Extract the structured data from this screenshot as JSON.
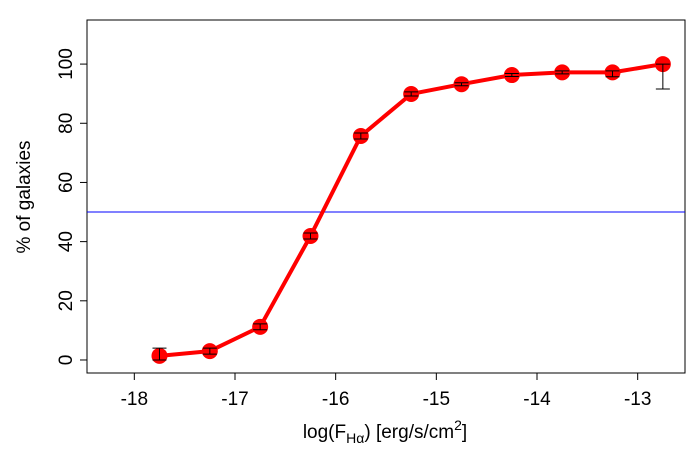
{
  "chart_data": {
    "type": "line",
    "xlabel": [
      "log(F",
      "Hα",
      ") [erg/s/cm",
      "2",
      "]"
    ],
    "ylabel": "% of galaxies",
    "x": [
      -17.75,
      -17.25,
      -16.75,
      -16.25,
      -15.75,
      -15.25,
      -14.75,
      -14.25,
      -13.75,
      -13.25,
      -12.75
    ],
    "series": [
      {
        "color": "#ff0000",
        "values": [
          1.4,
          3,
          11.2,
          41.9,
          75.7,
          89.9,
          93.2,
          96.3,
          97.2,
          97.2,
          100
        ],
        "error_low": [
          1.4,
          1,
          1,
          1,
          1,
          0.7,
          0.5,
          0.5,
          0.5,
          1.5,
          8.4
        ],
        "error_high": [
          2.6,
          1,
          1,
          1,
          1,
          0.7,
          0.5,
          0.5,
          0.5,
          0.5,
          0
        ]
      }
    ],
    "hline": {
      "value": 50,
      "color": "#0000ff"
    },
    "xlim": [
      -18.47,
      -12.53
    ],
    "ylim": [
      -4.4,
      114.9
    ],
    "xticks": [
      -18,
      -17,
      -16,
      -15,
      -14,
      -13
    ],
    "yticks": [
      0,
      20,
      40,
      60,
      80,
      100
    ]
  }
}
